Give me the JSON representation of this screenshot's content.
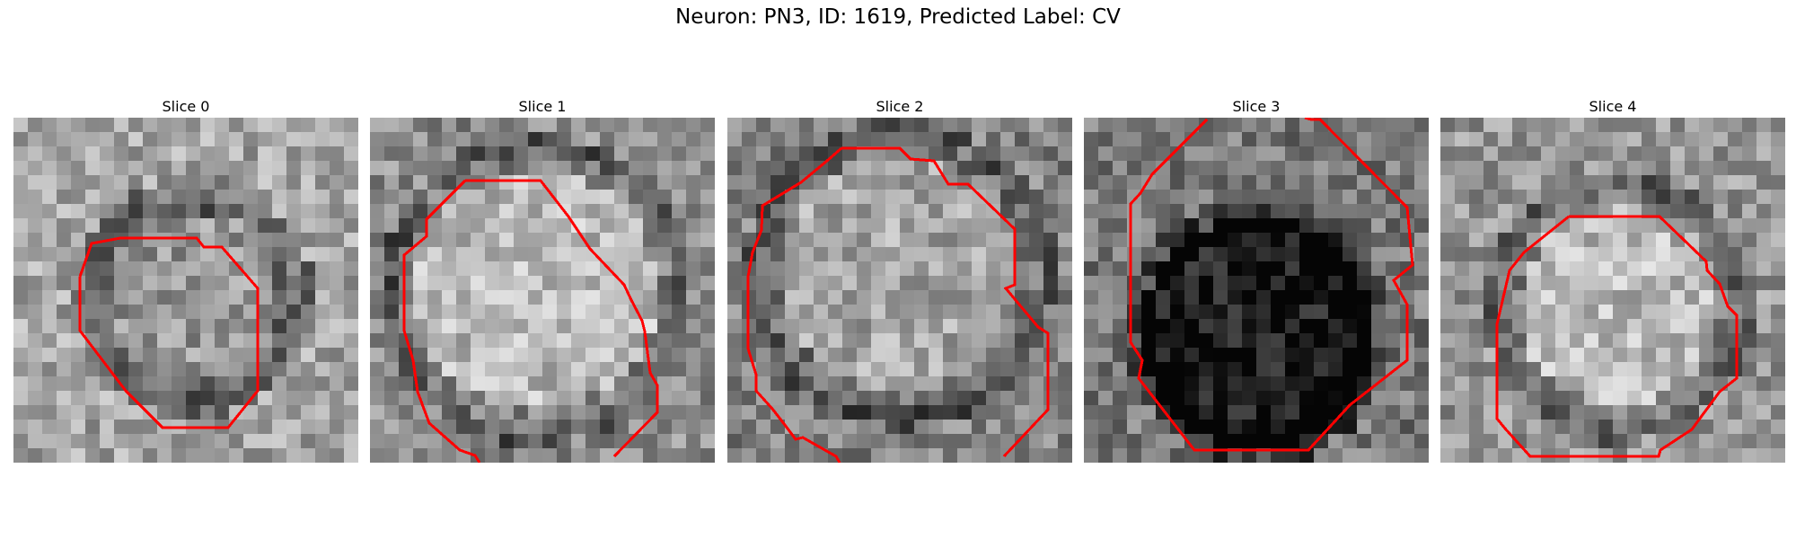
{
  "figure": {
    "title": "Neuron: PN3, ID: 1619, Predicted Label: CV",
    "contour_color": "#ff0000"
  },
  "panels": [
    {
      "title": "Slice 0"
    },
    {
      "title": "Slice 1"
    },
    {
      "title": "Slice 2"
    },
    {
      "title": "Slice 3"
    },
    {
      "title": "Slice 4"
    }
  ]
}
